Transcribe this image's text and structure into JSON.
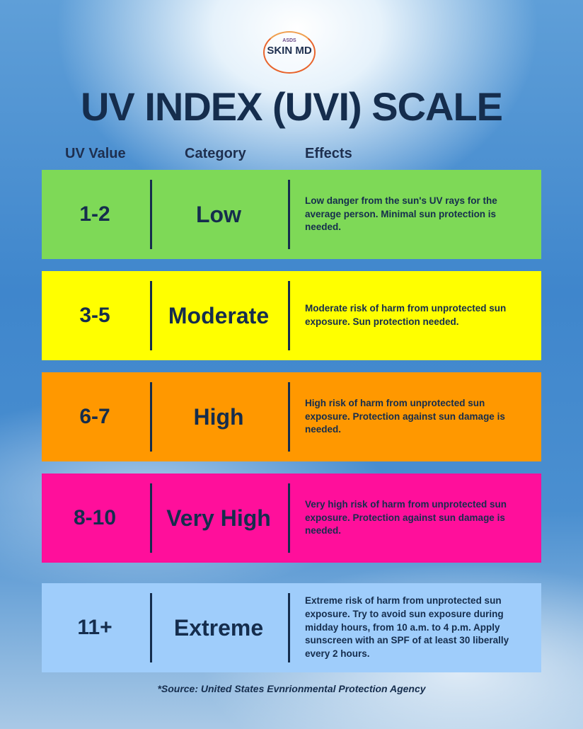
{
  "logo": {
    "badge": "ASDS",
    "brand": "SKIN MD"
  },
  "title": "UV INDEX (UVI) SCALE",
  "columns": [
    "UV Value",
    "Category",
    "Effects"
  ],
  "rows": [
    {
      "value": "1-2",
      "category": "Low",
      "effects": "Low danger from the sun's UV rays for the average person. Minimal sun protection is needed."
    },
    {
      "value": "3-5",
      "category": "Moderate",
      "effects": "Moderate risk of harm from unprotected sun exposure. Sun protection needed."
    },
    {
      "value": "6-7",
      "category": "High",
      "effects": "High risk of harm from unprotected sun exposure. Protection against sun damage is needed."
    },
    {
      "value": "8-10",
      "category": "Very High",
      "effects": "Very high risk of harm from unprotected sun exposure. Protection against sun damage is needed."
    },
    {
      "value": "11+",
      "category": "Extreme",
      "effects": "Extreme risk of harm from unprotected sun exposure. Try to avoid sun exposure during midday hours, from 10 a.m. to 4 p.m. Apply sunscreen with an SPF of at least 30 liberally every 2 hours."
    }
  ],
  "source": "*Source: United States Evnrionmental Protection Agency"
}
